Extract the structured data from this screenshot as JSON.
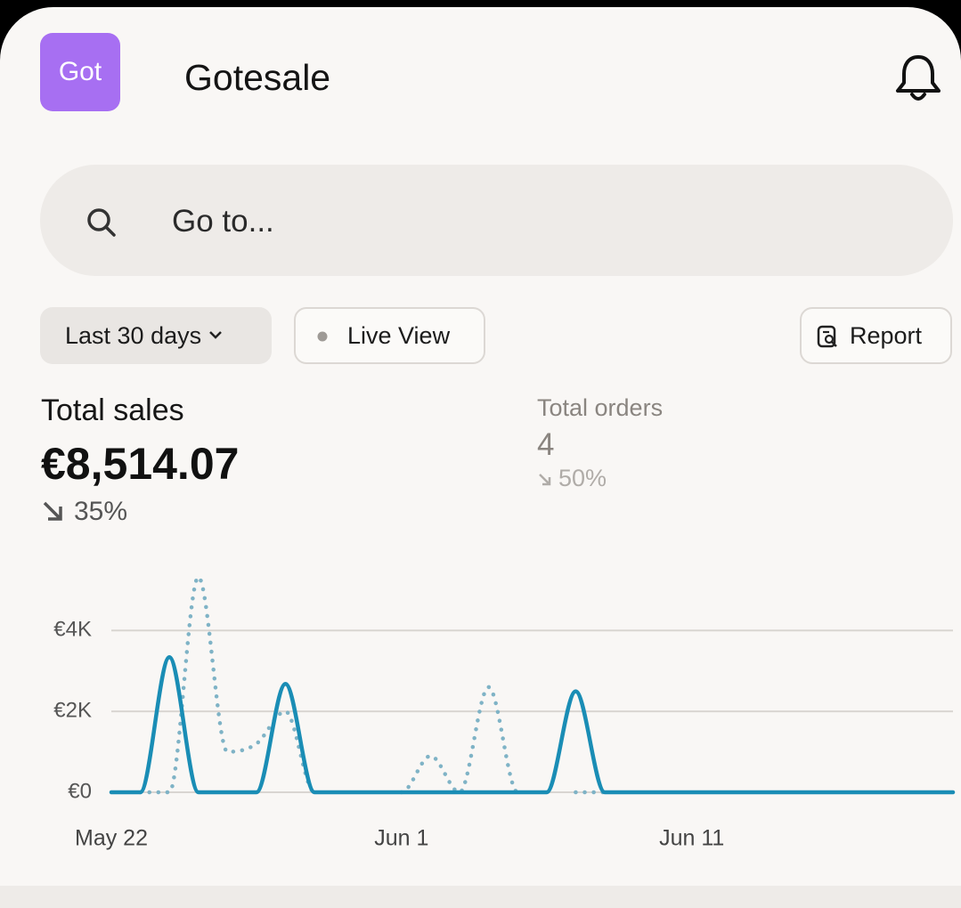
{
  "header": {
    "logo": "Got",
    "title": "Gotesale"
  },
  "search": {
    "placeholder": "Go to..."
  },
  "filters": {
    "range": "Last 30 days",
    "live": "Live View",
    "report": "Report"
  },
  "metrics": [
    {
      "label": "Total sales",
      "value": "€8,514.07",
      "change": "35%"
    },
    {
      "label": "Total orders",
      "value": "4",
      "change": "50%"
    }
  ],
  "chart_data": {
    "type": "line",
    "categories": [
      "May 22",
      null,
      null,
      null,
      null,
      null,
      null,
      null,
      null,
      null,
      "Jun 1",
      null,
      null,
      null,
      null,
      null,
      null,
      null,
      null,
      null,
      "Jun 11",
      null,
      null,
      null,
      null,
      null,
      null,
      null,
      null,
      null
    ],
    "series": [
      {
        "color": "#1a8db5",
        "style": "solid",
        "values": [
          0,
          0,
          3340,
          0,
          0,
          0,
          2680,
          0,
          0,
          0,
          0,
          0,
          0,
          0,
          0,
          0,
          2494,
          0,
          0,
          0,
          0,
          0,
          0,
          0,
          0,
          0,
          0,
          0,
          0,
          0
        ]
      },
      {
        "color": "#7fb3c6",
        "style": "dotted",
        "values": [
          null,
          0,
          0,
          5320,
          1000,
          1200,
          2000,
          0,
          null,
          null,
          0,
          900,
          0,
          2600,
          0,
          null,
          0,
          0,
          null,
          null,
          null,
          null,
          null,
          null,
          null,
          null,
          null,
          null,
          null,
          null
        ]
      }
    ],
    "ylim": [
      0,
      5700
    ],
    "yticks": [
      {
        "value": 0,
        "label": "€0"
      },
      {
        "value": 2000,
        "label": "€2K"
      },
      {
        "value": 4000,
        "label": "€4K"
      }
    ],
    "grid": true
  }
}
